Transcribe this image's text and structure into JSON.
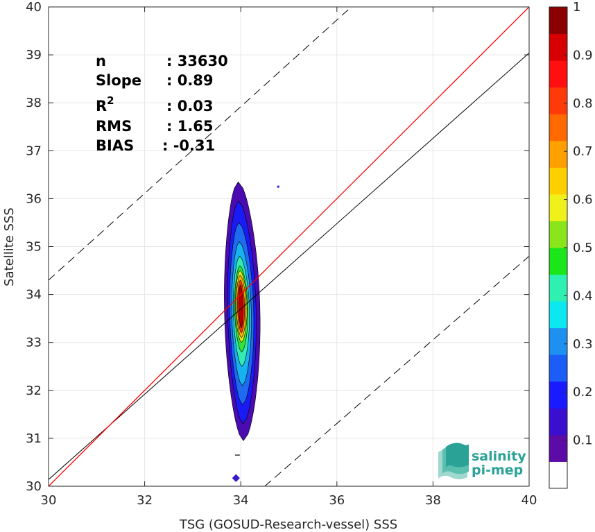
{
  "chart_data": {
    "type": "heatmap",
    "xlabel": "TSG (GOSUD-Research-vessel) SSS",
    "ylabel": "Satellite SSS",
    "xlim": [
      30,
      40
    ],
    "ylim": [
      30,
      40
    ],
    "x_ticks": [
      "30",
      "32",
      "34",
      "36",
      "38",
      "40"
    ],
    "y_ticks": [
      "30",
      "31",
      "32",
      "33",
      "34",
      "35",
      "36",
      "37",
      "38",
      "39",
      "40"
    ],
    "grid": true,
    "stats": {
      "n": {
        "label": "n",
        "value": ": 33630"
      },
      "slope": {
        "label": "Slope",
        "value": ": 0.89"
      },
      "r2": {
        "label": "R",
        "sup": "2",
        "value": ": 0.03"
      },
      "rms": {
        "label": "RMS",
        "value": ": 1.65"
      },
      "bias": {
        "label": "BIAS",
        "value": ": -0.31"
      }
    },
    "lines": {
      "identity": {
        "x": [
          30,
          40
        ],
        "y": [
          30,
          40
        ],
        "color": "#ff0000"
      },
      "fit": {
        "x": [
          30,
          40
        ],
        "y": [
          30.14,
          39.04
        ],
        "color": "#000000"
      },
      "upper_bound": {
        "x": [
          30,
          36.3
        ],
        "y": [
          34.3,
          40
        ],
        "style": "dashed"
      },
      "lower bound": {
        "x": [
          34.5,
          40
        ],
        "y": [
          30,
          34.8
        ],
        "style": "dashed"
      }
    },
    "density_blob": {
      "center_x": 34.0,
      "levels": [
        {
          "level": 0.05,
          "color": "#4a0bb0",
          "x_half": 0.4,
          "y": [
            30.95,
            36.35
          ]
        },
        {
          "level": 0.15,
          "color": "#1a1af5",
          "x_half": 0.32,
          "y": [
            31.3,
            35.95
          ]
        },
        {
          "level": 0.25,
          "color": "#1e6bf0",
          "x_half": 0.27,
          "y": [
            31.7,
            35.5
          ]
        },
        {
          "level": 0.35,
          "color": "#17b3f0",
          "x_half": 0.22,
          "y": [
            32.1,
            35.1
          ]
        },
        {
          "level": 0.45,
          "color": "#34ebb2",
          "x_half": 0.18,
          "y": [
            32.5,
            34.8
          ]
        },
        {
          "level": 0.55,
          "color": "#33e33a",
          "x_half": 0.15,
          "y": [
            32.8,
            34.6
          ]
        },
        {
          "level": 0.65,
          "color": "#e8e815",
          "x_half": 0.13,
          "y": [
            33.0,
            34.5
          ]
        },
        {
          "level": 0.75,
          "color": "#ffb000",
          "x_half": 0.11,
          "y": [
            33.1,
            34.4
          ]
        },
        {
          "level": 0.85,
          "color": "#ff3a0a",
          "x_half": 0.08,
          "y": [
            33.2,
            34.3
          ]
        },
        {
          "level": 0.95,
          "color": "#b40000",
          "x_half": 0.05,
          "y": [
            33.3,
            34.2
          ]
        }
      ]
    },
    "colorbar": {
      "range": [
        0,
        1
      ],
      "tick_labels": [
        "0.1",
        "0.2",
        "0.3",
        "0.4",
        "0.5",
        "0.6",
        "0.7",
        "0.8",
        "0.9",
        "1"
      ],
      "tick_values": [
        0.1,
        0.2,
        0.3,
        0.4,
        0.5,
        0.6,
        0.7,
        0.8,
        0.9,
        1.0
      ],
      "colors": [
        "#ffffff",
        "#5c0ba6",
        "#3a0fd0",
        "#1a1aff",
        "#1a5ef5",
        "#1e90f0",
        "#0ce8f0",
        "#2ef0b0",
        "#1ae61a",
        "#8ae61a",
        "#f0f01a",
        "#ffd000",
        "#ffa000",
        "#ff6a00",
        "#ff3a0a",
        "#ff0f0f",
        "#d60000",
        "#8b0000"
      ]
    }
  },
  "logo": {
    "line1": "salinity",
    "line2": "pi-mep",
    "color": "#2aa296"
  }
}
